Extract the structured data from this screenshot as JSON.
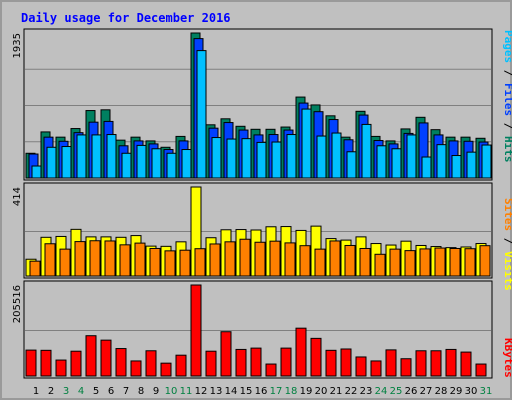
{
  "title": "Daily usage for December 2016",
  "colors": {
    "title": "#0000ff",
    "pages": "#00c0ff",
    "files": "#0040ff",
    "hits": "#008060",
    "visits": "#ffff00",
    "sites": "#ff8000",
    "kbytes": "#ff0000",
    "weekend": "#008040",
    "weekday": "#000000",
    "separator": "#000000"
  },
  "chart_data": [
    {
      "type": "bar",
      "name": "hits-files-pages",
      "categories": [
        "1",
        "2",
        "3",
        "4",
        "5",
        "6",
        "7",
        "8",
        "9",
        "10",
        "11",
        "12",
        "13",
        "14",
        "15",
        "16",
        "17",
        "18",
        "19",
        "20",
        "21",
        "22",
        "23",
        "24",
        "25",
        "26",
        "27",
        "28",
        "29",
        "30",
        "31"
      ],
      "weekend_days": [
        "3",
        "4",
        "10",
        "11",
        "17",
        "18",
        "24",
        "25",
        "31"
      ],
      "ymax_label": "1935",
      "ylim": [
        0,
        1935
      ],
      "legend": [
        "Pages",
        "Files",
        "Hits"
      ],
      "series": [
        {
          "name": "Hits",
          "values": [
            330,
            615,
            545,
            660,
            900,
            910,
            505,
            545,
            495,
            410,
            555,
            1935,
            710,
            790,
            690,
            650,
            650,
            680,
            1080,
            975,
            830,
            545,
            890,
            555,
            495,
            655,
            810,
            645,
            545,
            545,
            530
          ]
        },
        {
          "name": "Files",
          "values": [
            320,
            545,
            490,
            605,
            745,
            755,
            430,
            495,
            455,
            380,
            495,
            1860,
            665,
            740,
            640,
            575,
            580,
            640,
            1000,
            885,
            780,
            510,
            840,
            500,
            455,
            595,
            735,
            575,
            495,
            490,
            480
          ]
        },
        {
          "name": "Pages",
          "values": [
            160,
            410,
            420,
            575,
            575,
            580,
            330,
            435,
            390,
            330,
            380,
            1700,
            540,
            520,
            525,
            475,
            480,
            580,
            920,
            560,
            600,
            350,
            715,
            430,
            390,
            575,
            280,
            445,
            300,
            345,
            440
          ]
        }
      ]
    },
    {
      "type": "bar",
      "name": "visits-sites",
      "categories": [
        "1",
        "2",
        "3",
        "4",
        "5",
        "6",
        "7",
        "8",
        "9",
        "10",
        "11",
        "12",
        "13",
        "14",
        "15",
        "16",
        "17",
        "18",
        "19",
        "20",
        "21",
        "22",
        "23",
        "24",
        "25",
        "26",
        "27",
        "28",
        "29",
        "30",
        "31"
      ],
      "ymax_label": "414",
      "ylim": [
        0,
        414
      ],
      "legend": [
        "Sites",
        "Visits"
      ],
      "series": [
        {
          "name": "Visits",
          "values": [
            78,
            180,
            184,
            217,
            182,
            182,
            180,
            188,
            139,
            138,
            159,
            414,
            178,
            215,
            216,
            214,
            229,
            230,
            212,
            232,
            174,
            167,
            182,
            151,
            144,
            162,
            142,
            137,
            132,
            135,
            151
          ]
        },
        {
          "name": "Sites",
          "values": [
            69,
            150,
            125,
            160,
            164,
            163,
            145,
            153,
            128,
            117,
            120,
            127,
            149,
            159,
            171,
            157,
            162,
            154,
            141,
            125,
            163,
            142,
            128,
            101,
            125,
            118,
            126,
            130,
            128,
            127,
            141
          ]
        }
      ]
    },
    {
      "type": "bar",
      "name": "kbytes",
      "categories": [
        "1",
        "2",
        "3",
        "4",
        "5",
        "6",
        "7",
        "8",
        "9",
        "10",
        "11",
        "12",
        "13",
        "14",
        "15",
        "16",
        "17",
        "18",
        "19",
        "20",
        "21",
        "22",
        "23",
        "24",
        "25",
        "26",
        "27",
        "28",
        "29",
        "30",
        "31"
      ],
      "ymax_label": "205516",
      "ylim": [
        0,
        205516
      ],
      "legend": [
        "KBytes"
      ],
      "series": [
        {
          "name": "KBytes",
          "values": [
            58500,
            58000,
            36000,
            56000,
            91000,
            81000,
            62000,
            34000,
            57000,
            29000,
            47000,
            205516,
            56000,
            100000,
            60000,
            63000,
            27000,
            63000,
            108000,
            85000,
            58000,
            61000,
            43000,
            34000,
            59000,
            39000,
            57000,
            57000,
            60000,
            54000,
            27000
          ]
        }
      ]
    }
  ]
}
